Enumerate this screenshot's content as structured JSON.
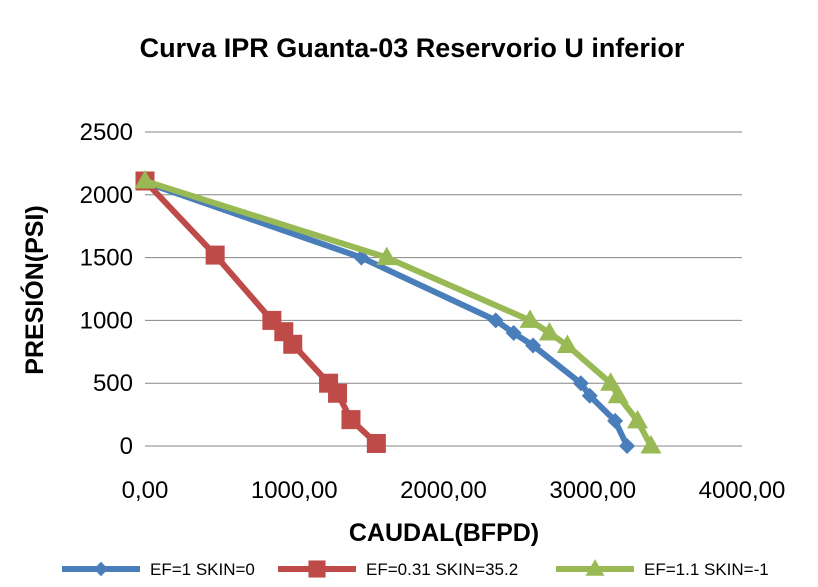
{
  "chart_data": {
    "type": "line",
    "title": "Curva IPR Guanta-03 Reservorio U inferior",
    "xlabel": "CAUDAL(BFPD)",
    "ylabel": "PRESIÓN(PSI)",
    "xlim": [
      0,
      4000
    ],
    "ylim": [
      0,
      2500
    ],
    "x_ticks": [
      0,
      1000,
      2000,
      3000,
      4000
    ],
    "x_tick_labels": [
      "0,00",
      "1000,00",
      "2000,00",
      "3000,00",
      "4000,00"
    ],
    "y_ticks": [
      0,
      500,
      1000,
      1500,
      2000,
      2500
    ],
    "y_tick_labels": [
      "0",
      "500",
      "1000",
      "1500",
      "2000",
      "2500"
    ],
    "grid": "horizontal",
    "legend_position": "bottom",
    "series": [
      {
        "name": "EF=1  SKIN=0",
        "color": "#4a7ebb",
        "marker": "diamond",
        "x": [
          0,
          1450,
          2350,
          2470,
          2600,
          2920,
          2980,
          3150,
          3230
        ],
        "y": [
          2100,
          1500,
          1000,
          900,
          800,
          500,
          400,
          200,
          0
        ]
      },
      {
        "name": "EF=0.31  SKIN=35.2",
        "color": "#be4b48",
        "marker": "square",
        "x": [
          0,
          470,
          850,
          930,
          990,
          1230,
          1290,
          1380,
          1550
        ],
        "y": [
          2110,
          1520,
          1000,
          910,
          810,
          500,
          420,
          210,
          20
        ]
      },
      {
        "name": "EF=1.1  SKIN=-1",
        "color": "#98b954",
        "marker": "triangle",
        "x": [
          0,
          1620,
          2580,
          2710,
          2830,
          3120,
          3170,
          3300,
          3390
        ],
        "y": [
          2110,
          1500,
          1000,
          900,
          800,
          500,
          400,
          200,
          0
        ]
      }
    ]
  }
}
